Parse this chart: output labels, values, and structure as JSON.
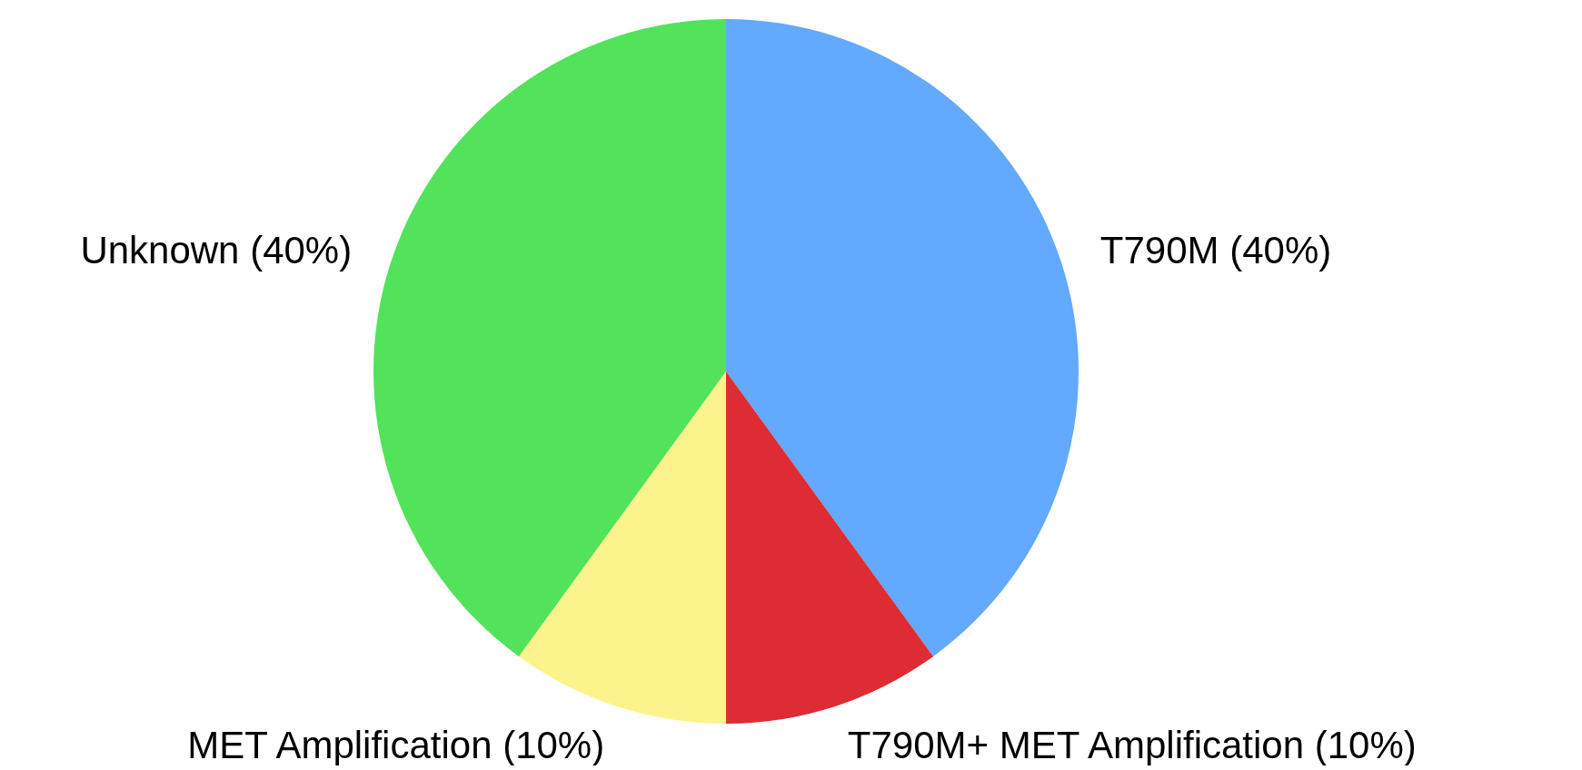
{
  "chart_data": {
    "type": "pie",
    "categories": [
      "T790M (40%)",
      "T790M+ MET Amplification (10%)",
      "MET Amplification (10%)",
      "Unknown (40%)"
    ],
    "values": [
      40,
      10,
      10,
      40
    ],
    "colors": [
      "#63a9fd",
      "#dd2c33",
      "#fdf38c",
      "#52e35a"
    ]
  }
}
